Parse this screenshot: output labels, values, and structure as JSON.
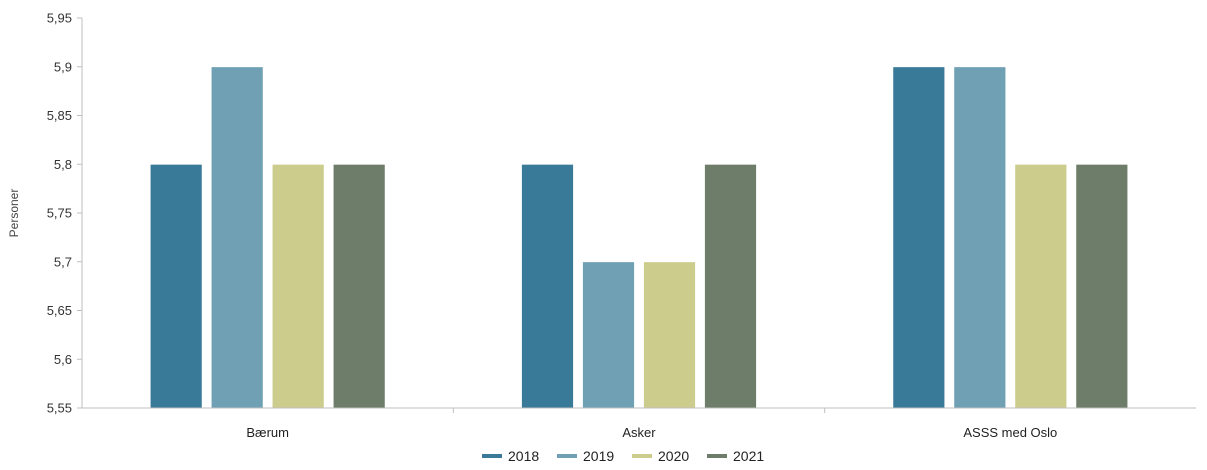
{
  "chart_data": {
    "type": "bar",
    "categories": [
      "Bærum",
      "Asker",
      "ASSS med Oslo"
    ],
    "series": [
      {
        "name": "2018",
        "color": "#3a7a99",
        "values": [
          5.8,
          5.8,
          5.9
        ]
      },
      {
        "name": "2019",
        "color": "#6fa0b4",
        "values": [
          5.9,
          5.7,
          5.9
        ]
      },
      {
        "name": "2020",
        "color": "#cccc8c",
        "values": [
          5.8,
          5.7,
          5.8
        ]
      },
      {
        "name": "2021",
        "color": "#6e7d6a",
        "values": [
          5.8,
          5.8,
          5.8
        ]
      }
    ],
    "ylabel": "Personer",
    "ylim": [
      5.55,
      5.95
    ],
    "yticks": [
      "5,55",
      "5,6",
      "5,65",
      "5,7",
      "5,75",
      "5,8",
      "5,85",
      "5,9",
      "5,95"
    ],
    "grid": false,
    "legend_position": "bottom"
  }
}
